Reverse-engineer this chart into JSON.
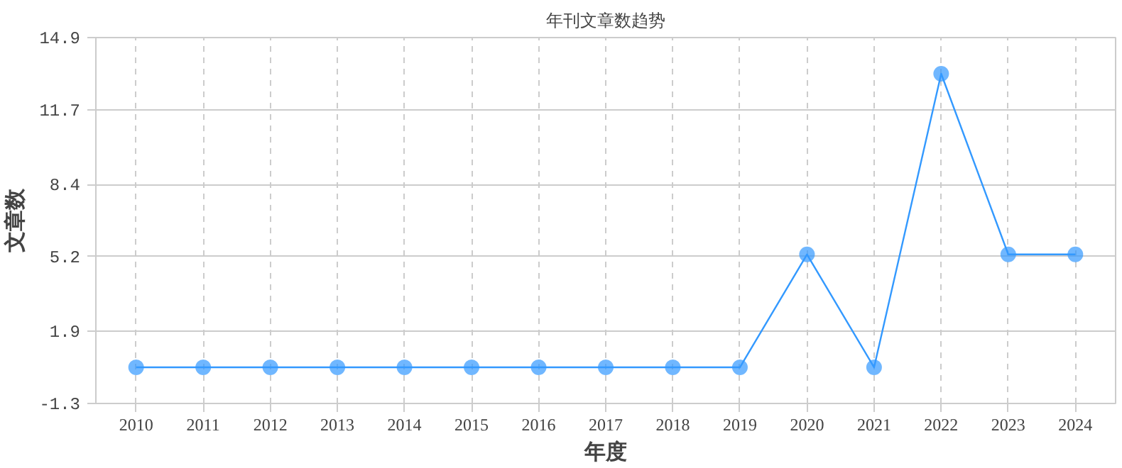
{
  "chart_data": {
    "type": "line",
    "title": "年刊文章数趋势",
    "xlabel": "年度",
    "ylabel": "文章数",
    "categories": [
      "2010",
      "2011",
      "2012",
      "2013",
      "2014",
      "2015",
      "2016",
      "2017",
      "2018",
      "2019",
      "2020",
      "2021",
      "2022",
      "2023",
      "2024"
    ],
    "series": [
      {
        "color": "#3399ff",
        "values": [
          0.3,
          0.3,
          0.3,
          0.3,
          0.3,
          0.3,
          0.3,
          0.3,
          0.3,
          0.3,
          5.3,
          0.3,
          13.3,
          5.3,
          5.3
        ]
      }
    ],
    "ylim": [
      -1.3,
      14.9
    ],
    "yticks": [
      -1.3,
      1.9,
      5.2,
      8.4,
      11.7,
      14.9
    ],
    "grid": true,
    "marker": "circle",
    "line_style": "solid"
  }
}
